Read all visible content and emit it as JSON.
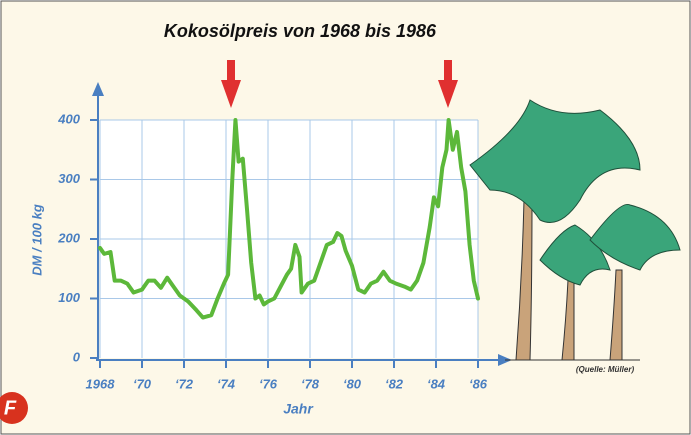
{
  "chart_data": {
    "type": "line",
    "title": "Kokosölpreis von 1968 bis 1986",
    "x_label": "Jahr",
    "y_label": "DM / 100 kg",
    "source": "(Quelle: Müller)",
    "badge": "F",
    "color": "#5cb83a",
    "x": [
      1968.0,
      1968.2,
      1968.5,
      1968.7,
      1969.0,
      1969.3,
      1969.6,
      1970.0,
      1970.3,
      1970.6,
      1970.9,
      1971.2,
      1971.5,
      1971.8,
      1972.2,
      1972.6,
      1972.9,
      1973.3,
      1973.6,
      1973.9,
      1974.1,
      1974.3,
      1974.45,
      1974.6,
      1974.8,
      1975.0,
      1975.2,
      1975.4,
      1975.6,
      1975.8,
      1976.0,
      1976.3,
      1976.6,
      1976.9,
      1977.1,
      1977.3,
      1977.5,
      1977.6,
      1977.9,
      1978.2,
      1978.5,
      1978.8,
      1979.1,
      1979.3,
      1979.5,
      1979.7,
      1980.0,
      1980.3,
      1980.6,
      1980.9,
      1981.2,
      1981.5,
      1981.8,
      1982.1,
      1982.5,
      1982.8,
      1983.1,
      1983.4,
      1983.7,
      1983.9,
      1984.1,
      1984.3,
      1984.5,
      1984.6,
      1984.8,
      1985.0,
      1985.2,
      1985.4,
      1985.6,
      1985.8,
      1986.0
    ],
    "values": [
      185,
      175,
      178,
      130,
      130,
      125,
      110,
      115,
      130,
      130,
      118,
      135,
      120,
      105,
      95,
      80,
      68,
      72,
      100,
      125,
      140,
      300,
      400,
      330,
      335,
      250,
      160,
      100,
      105,
      90,
      95,
      100,
      120,
      140,
      150,
      190,
      170,
      110,
      125,
      130,
      160,
      190,
      195,
      210,
      205,
      180,
      155,
      115,
      110,
      125,
      130,
      145,
      130,
      125,
      120,
      115,
      130,
      160,
      220,
      270,
      255,
      320,
      350,
      400,
      350,
      380,
      320,
      280,
      190,
      130,
      100
    ],
    "xlim": [
      1968,
      1986
    ],
    "xticks": [
      1968,
      {
        "value": 1970,
        "label": "‘70"
      },
      {
        "value": 1972,
        "label": "‘72"
      },
      {
        "value": 1974,
        "label": "‘74"
      },
      {
        "value": 1976,
        "label": "‘76"
      },
      {
        "value": 1978,
        "label": "‘78"
      },
      {
        "value": 1980,
        "label": "‘80"
      },
      {
        "value": 1982,
        "label": "‘82"
      },
      {
        "value": 1984,
        "label": "‘84"
      },
      {
        "value": 1986,
        "label": "‘86"
      }
    ],
    "ylim": [
      0,
      400
    ],
    "yticks": [
      0,
      100,
      200,
      300,
      400
    ],
    "grid": true
  }
}
